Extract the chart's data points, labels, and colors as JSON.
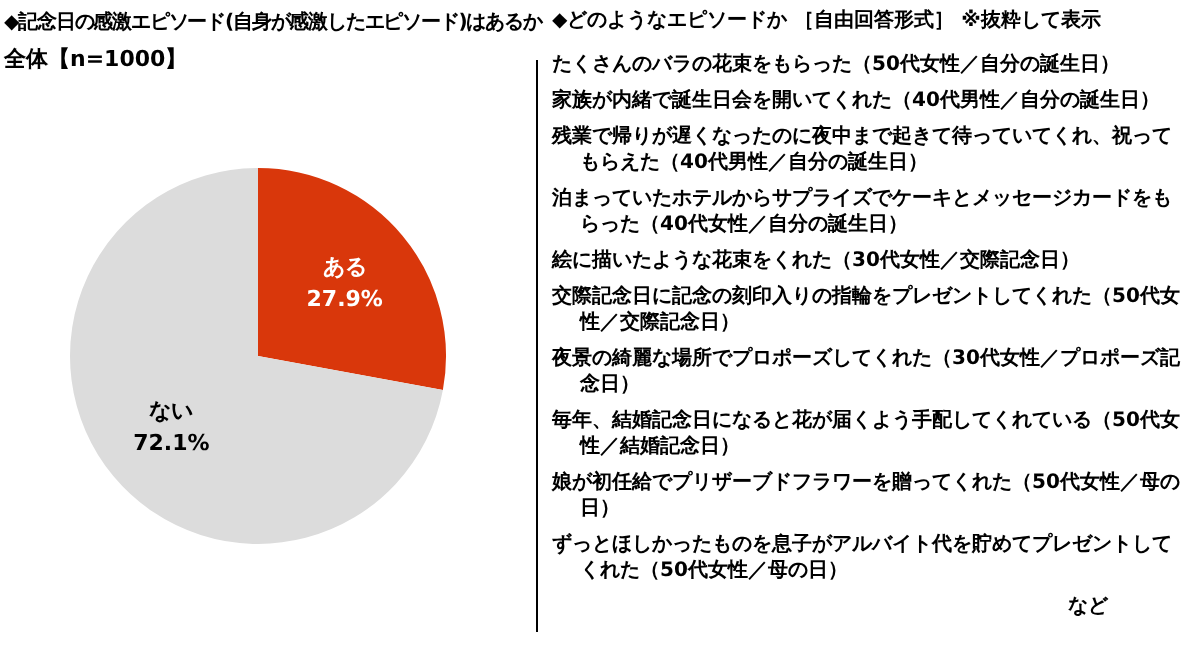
{
  "chart_data": {
    "type": "pie",
    "title": "◆記念日の感激エピソード(自身が感激したエピソード)はあるか",
    "subtitle": "全体【n=1000】",
    "categories": [
      "ある",
      "ない"
    ],
    "values": [
      27.9,
      72.1
    ],
    "colors": [
      "#d9370b",
      "#dcdcdc"
    ],
    "value_labels": [
      "27.9%",
      "72.1%"
    ],
    "legend": false,
    "annotations": [
      "◆どのようなエピソードか ［自由回答形式］ ※抜粋して表示",
      "たくさんのバラの花束をもらった（50代女性／自分の誕生日）",
      "家族が内緒で誕生日会を開いてくれた（40代男性／自分の誕生日）",
      "残業で帰りが遅くなったのに夜中まで起きて待っていてくれ、祝ってもらえた（40代男性／自分の誕生日）",
      "泊まっていたホテルからサプライズでケーキとメッセージカードをもらった（40代女性／自分の誕生日）",
      "絵に描いたような花束をくれた（30代女性／交際記念日）",
      "交際記念日に記念の刻印入りの指輪をプレゼントしてくれた（50代女性／交際記念日）",
      "夜景の綺麗な場所でプロポーズしてくれた（30代女性／プロポーズ記念日）",
      "毎年、結婚記念日になると花が届くよう手配してくれている（50代女性／結婚記念日）",
      "娘が初任給でプリザーブドフラワーを贈ってくれた（50代女性／母の日）",
      "ずっとほしかったものを息子がアルバイト代を貯めてプレゼントしてくれた（50代女性／母の日）",
      "など"
    ]
  }
}
